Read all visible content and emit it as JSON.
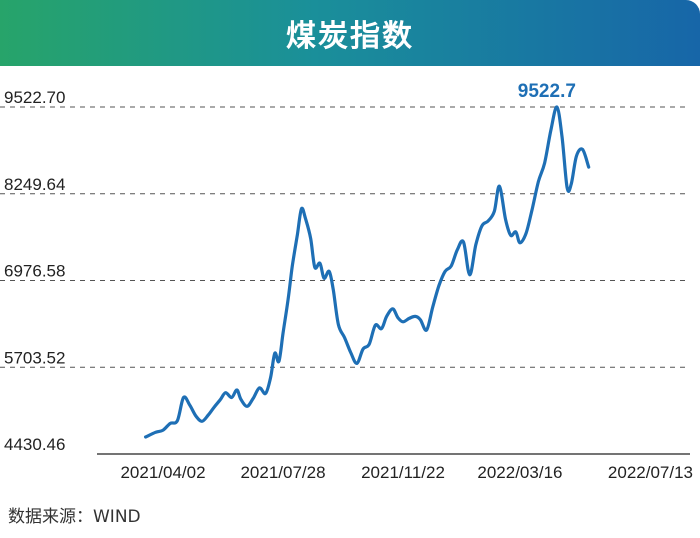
{
  "chart_data": {
    "type": "line",
    "title": "煤炭指数",
    "xlabel": "",
    "ylabel": "",
    "y_ticks": [
      "9522.70",
      "8249.64",
      "6976.58",
      "5703.52",
      "4430.46"
    ],
    "x_ticks": [
      "2021/04/02",
      "2021/07/28",
      "2021/11/22",
      "2022/03/16",
      "2022/07/13"
    ],
    "ylim": [
      4430.46,
      9522.7
    ],
    "grid": "horizontal dashed",
    "peak_label": "9522.7",
    "series": [
      {
        "color": "#1e6fb5",
        "points": [
          [
            "2021/03/16",
            4680
          ],
          [
            "2021/03/26",
            4750
          ],
          [
            "2021/04/02",
            4780
          ],
          [
            "2021/04/09",
            4880
          ],
          [
            "2021/04/16",
            4920
          ],
          [
            "2021/04/22",
            5260
          ],
          [
            "2021/04/28",
            5150
          ],
          [
            "2021/05/04",
            4990
          ],
          [
            "2021/05/10",
            4910
          ],
          [
            "2021/05/16",
            5000
          ],
          [
            "2021/05/22",
            5120
          ],
          [
            "2021/05/28",
            5230
          ],
          [
            "2021/06/02",
            5330
          ],
          [
            "2021/06/08",
            5260
          ],
          [
            "2021/06/13",
            5370
          ],
          [
            "2021/06/17",
            5230
          ],
          [
            "2021/06/23",
            5130
          ],
          [
            "2021/06/29",
            5250
          ],
          [
            "2021/07/05",
            5400
          ],
          [
            "2021/07/11",
            5320
          ],
          [
            "2021/07/16",
            5560
          ],
          [
            "2021/07/20",
            5910
          ],
          [
            "2021/07/24",
            5790
          ],
          [
            "2021/07/28",
            6200
          ],
          [
            "2021/08/02",
            6700
          ],
          [
            "2021/08/06",
            7180
          ],
          [
            "2021/08/11",
            7650
          ],
          [
            "2021/08/15",
            8030
          ],
          [
            "2021/08/19",
            7880
          ],
          [
            "2021/08/24",
            7590
          ],
          [
            "2021/08/28",
            7170
          ],
          [
            "2021/09/02",
            7230
          ],
          [
            "2021/09/06",
            7010
          ],
          [
            "2021/09/11",
            7110
          ],
          [
            "2021/09/15",
            6840
          ],
          [
            "2021/09/20",
            6330
          ],
          [
            "2021/09/26",
            6140
          ],
          [
            "2021/10/02",
            5920
          ],
          [
            "2021/10/08",
            5760
          ],
          [
            "2021/10/14",
            5970
          ],
          [
            "2021/10/20",
            6040
          ],
          [
            "2021/10/26",
            6320
          ],
          [
            "2021/11/01",
            6270
          ],
          [
            "2021/11/06",
            6450
          ],
          [
            "2021/11/12",
            6560
          ],
          [
            "2021/11/17",
            6430
          ],
          [
            "2021/11/22",
            6370
          ],
          [
            "2021/11/28",
            6420
          ],
          [
            "2021/12/04",
            6450
          ],
          [
            "2021/12/09",
            6400
          ],
          [
            "2021/12/15",
            6250
          ],
          [
            "2021/12/21",
            6590
          ],
          [
            "2021/12/27",
            6900
          ],
          [
            "2022/01/02",
            7110
          ],
          [
            "2022/01/08",
            7190
          ],
          [
            "2022/01/14",
            7430
          ],
          [
            "2022/01/20",
            7540
          ],
          [
            "2022/01/26",
            7060
          ],
          [
            "2022/02/01",
            7500
          ],
          [
            "2022/02/07",
            7780
          ],
          [
            "2022/02/13",
            7850
          ],
          [
            "2022/02/19",
            7990
          ],
          [
            "2022/02/24",
            8360
          ],
          [
            "2022/03/02",
            7870
          ],
          [
            "2022/03/07",
            7640
          ],
          [
            "2022/03/12",
            7690
          ],
          [
            "2022/03/16",
            7530
          ],
          [
            "2022/03/22",
            7670
          ],
          [
            "2022/03/28",
            8030
          ],
          [
            "2022/04/03",
            8430
          ],
          [
            "2022/04/09",
            8700
          ],
          [
            "2022/04/15",
            9170
          ],
          [
            "2022/04/21",
            9522.7
          ],
          [
            "2022/04/26",
            9090
          ],
          [
            "2022/05/01",
            8340
          ],
          [
            "2022/05/05",
            8390
          ],
          [
            "2022/05/10",
            8800
          ],
          [
            "2022/05/16",
            8900
          ],
          [
            "2022/05/22",
            8640
          ]
        ]
      }
    ]
  },
  "footer": {
    "source": "数据来源：WIND"
  }
}
